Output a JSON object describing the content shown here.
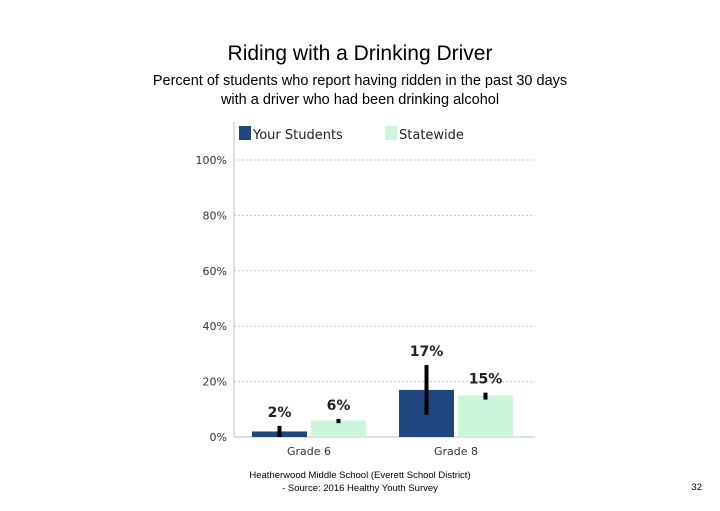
{
  "chart_data": {
    "type": "bar",
    "title": "Riding with a Drinking Driver",
    "subtitle": [
      "Percent of students who report having ridden in the past 30 days",
      "with a driver who had been drinking alcohol"
    ],
    "categories": [
      "Grade 6",
      "Grade 8"
    ],
    "series": [
      {
        "name": "Your Students",
        "values": [
          2,
          17
        ],
        "labels": [
          "2%",
          "17%"
        ],
        "ci": [
          [
            0,
            4
          ],
          [
            8,
            26
          ]
        ]
      },
      {
        "name": "Statewide",
        "values": [
          6,
          15
        ],
        "labels": [
          "6%",
          "15%"
        ],
        "ci": [
          [
            5,
            6.5
          ],
          [
            13.5,
            16
          ]
        ]
      }
    ],
    "yticks": [
      "0%",
      "20%",
      "40%",
      "60%",
      "80%",
      "100%"
    ],
    "ylim": [
      0,
      100
    ],
    "grid": true,
    "legend": "top",
    "colors": {
      "Your Students": "#1f467f",
      "Statewide": "#ccf5dc"
    }
  },
  "footer": {
    "line1": "Heatherwood Middle School (Everett School District)",
    "line2": "- Source: 2016 Healthy Youth Survey",
    "page": "32"
  }
}
